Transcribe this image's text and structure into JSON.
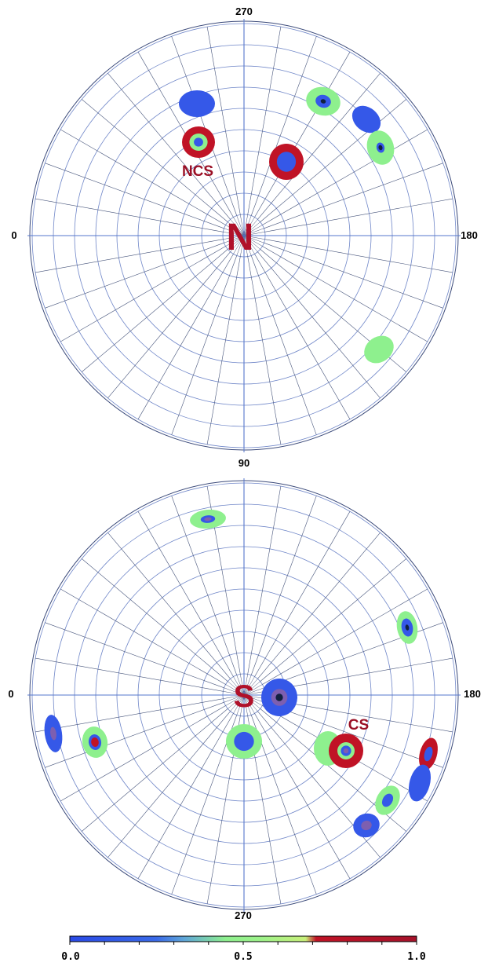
{
  "colors": {
    "blue": "#3558e8",
    "green": "#8ef08e",
    "red": "#c01326",
    "grid": "#6f86c8",
    "pole_text": "#b0112a",
    "label_text": "#9a0f25"
  },
  "north_panel": {
    "label_top": "270",
    "label_left": "0",
    "label_right": "180",
    "pole_letter": "N",
    "region_label": "NCS"
  },
  "south_panel": {
    "label_top": "90",
    "label_left": "0",
    "label_right": "180",
    "label_bottom": "270",
    "pole_letter": "S",
    "region_label": "CS"
  },
  "colorbar": {
    "ticks": [
      "0.0",
      "0.5",
      "1.0"
    ],
    "stops": [
      "#2a4ae6",
      "#3a6ae8",
      "#5fa6d8",
      "#8ef08e",
      "#9df28a",
      "#c8f07a",
      "#c01326",
      "#a5122a"
    ]
  }
}
